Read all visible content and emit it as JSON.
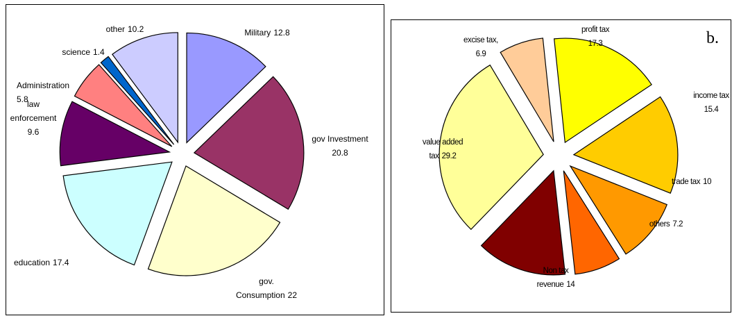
{
  "chart_data": [
    {
      "type": "pie",
      "categories": [
        "Military",
        "gov Investment",
        "gov. Consumption",
        "education",
        "law enforcement",
        "Administration",
        "science",
        "other"
      ],
      "values": [
        12.8,
        20.8,
        22,
        17.4,
        9.6,
        5.8,
        1.4,
        10.2
      ],
      "colors": [
        "#9999ff",
        "#993366",
        "#ffffcc",
        "#ccffff",
        "#660066",
        "#ff8080",
        "#0066cc",
        "#ccccff"
      ]
    },
    {
      "type": "pie",
      "panel_label": "b.",
      "categories": [
        "profit tax",
        "income tax",
        "trade tax",
        "others",
        "Non tax revenue",
        "value added tax",
        "excise tax,"
      ],
      "values": [
        17.3,
        15.4,
        10,
        7.2,
        14,
        29.2,
        6.9
      ],
      "colors": [
        "#ffff00",
        "#ffcc00",
        "#ff9900",
        "#ff6600",
        "#800000",
        "#ffff99",
        "#ffcc99"
      ]
    }
  ]
}
